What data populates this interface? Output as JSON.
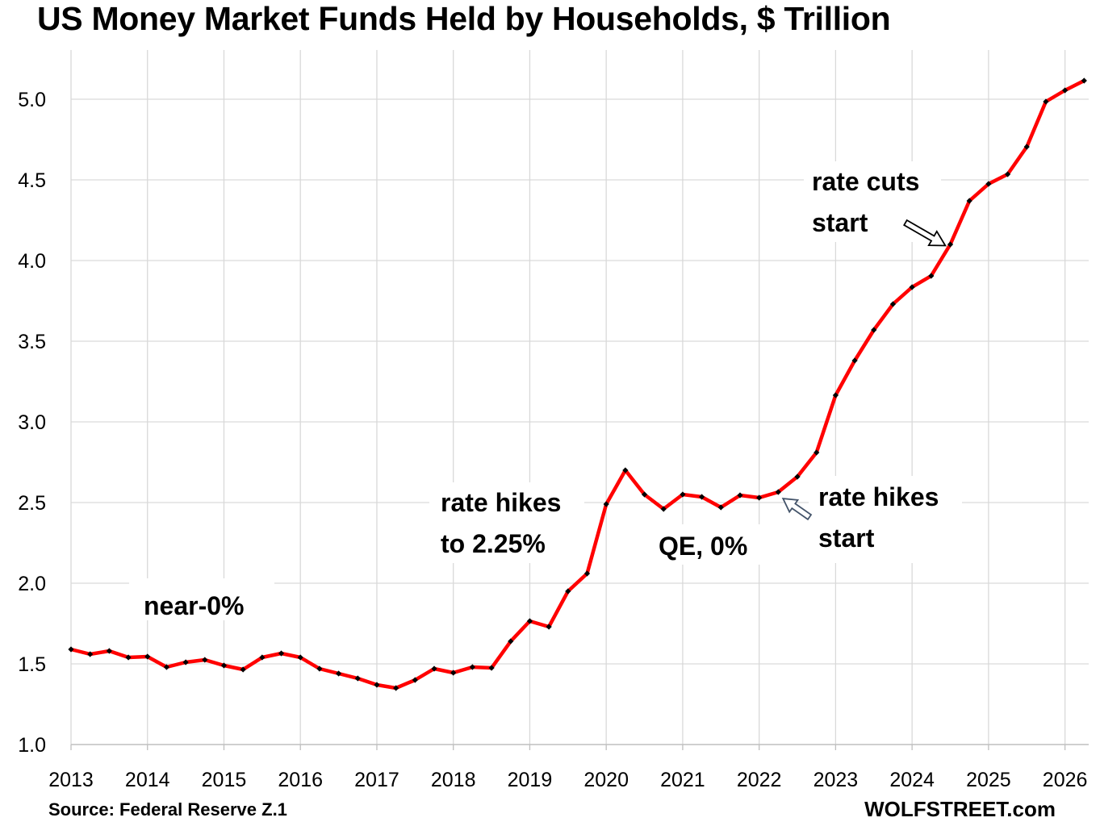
{
  "chart_data": {
    "type": "line",
    "title": "US Money Market Funds Held by Households, $ Trillion",
    "xlabel": "",
    "ylabel": "",
    "ylim": [
      1.0,
      5.3
    ],
    "xlim": [
      2013.0,
      2026.35
    ],
    "y_ticks": [
      "1.0",
      "1.5",
      "2.0",
      "2.5",
      "3.0",
      "3.5",
      "4.0",
      "4.5",
      "5.0"
    ],
    "x_ticks": [
      "2013",
      "2014",
      "2015",
      "2016",
      "2017",
      "2018",
      "2019",
      "2020",
      "2021",
      "2022",
      "2023",
      "2024",
      "2025",
      "2026"
    ],
    "grid": true,
    "series": [
      {
        "color": "#ff0000",
        "marker_color": "#000000",
        "x": [
          2013.0,
          2013.25,
          2013.5,
          2013.75,
          2014.0,
          2014.25,
          2014.5,
          2014.75,
          2015.0,
          2015.25,
          2015.5,
          2015.75,
          2016.0,
          2016.25,
          2016.5,
          2016.75,
          2017.0,
          2017.25,
          2017.5,
          2017.75,
          2018.0,
          2018.25,
          2018.5,
          2018.75,
          2019.0,
          2019.25,
          2019.5,
          2019.75,
          2020.0,
          2020.25,
          2020.5,
          2020.75,
          2021.0,
          2021.25,
          2021.5,
          2021.75,
          2022.0,
          2022.25,
          2022.5,
          2022.75,
          2023.0,
          2023.25,
          2023.5,
          2023.75,
          2024.0,
          2024.25,
          2024.5,
          2024.75,
          2025.0,
          2025.25,
          2025.5,
          2025.75,
          2026.0,
          2026.25
        ],
        "values": [
          1.59,
          1.56,
          1.58,
          1.54,
          1.545,
          1.48,
          1.51,
          1.525,
          1.49,
          1.465,
          1.54,
          1.565,
          1.54,
          1.47,
          1.44,
          1.41,
          1.37,
          1.35,
          1.4,
          1.47,
          1.445,
          1.48,
          1.475,
          1.64,
          1.765,
          1.73,
          1.95,
          2.06,
          2.49,
          2.7,
          2.55,
          2.46,
          2.55,
          2.535,
          2.47,
          2.545,
          2.53,
          2.565,
          2.66,
          2.81,
          3.165,
          3.38,
          3.57,
          3.73,
          3.835,
          3.905,
          4.1,
          4.37,
          4.475,
          4.535,
          4.705,
          4.985,
          5.055,
          5.115
        ]
      }
    ],
    "annotations": [
      {
        "id": "near-zero",
        "text": "near-0%"
      },
      {
        "id": "rate-hikes-2018",
        "lines": [
          "rate hikes",
          "to 2.25%"
        ]
      },
      {
        "id": "qe-zero",
        "text": "QE, 0%"
      },
      {
        "id": "rate-hikes-start",
        "lines": [
          "rate hikes",
          "start"
        ]
      },
      {
        "id": "rate-cuts-start",
        "lines": [
          "rate cuts",
          "start"
        ]
      }
    ],
    "source": "Source: Federal Reserve Z.1",
    "brand": "WOLFSTREET.com"
  }
}
